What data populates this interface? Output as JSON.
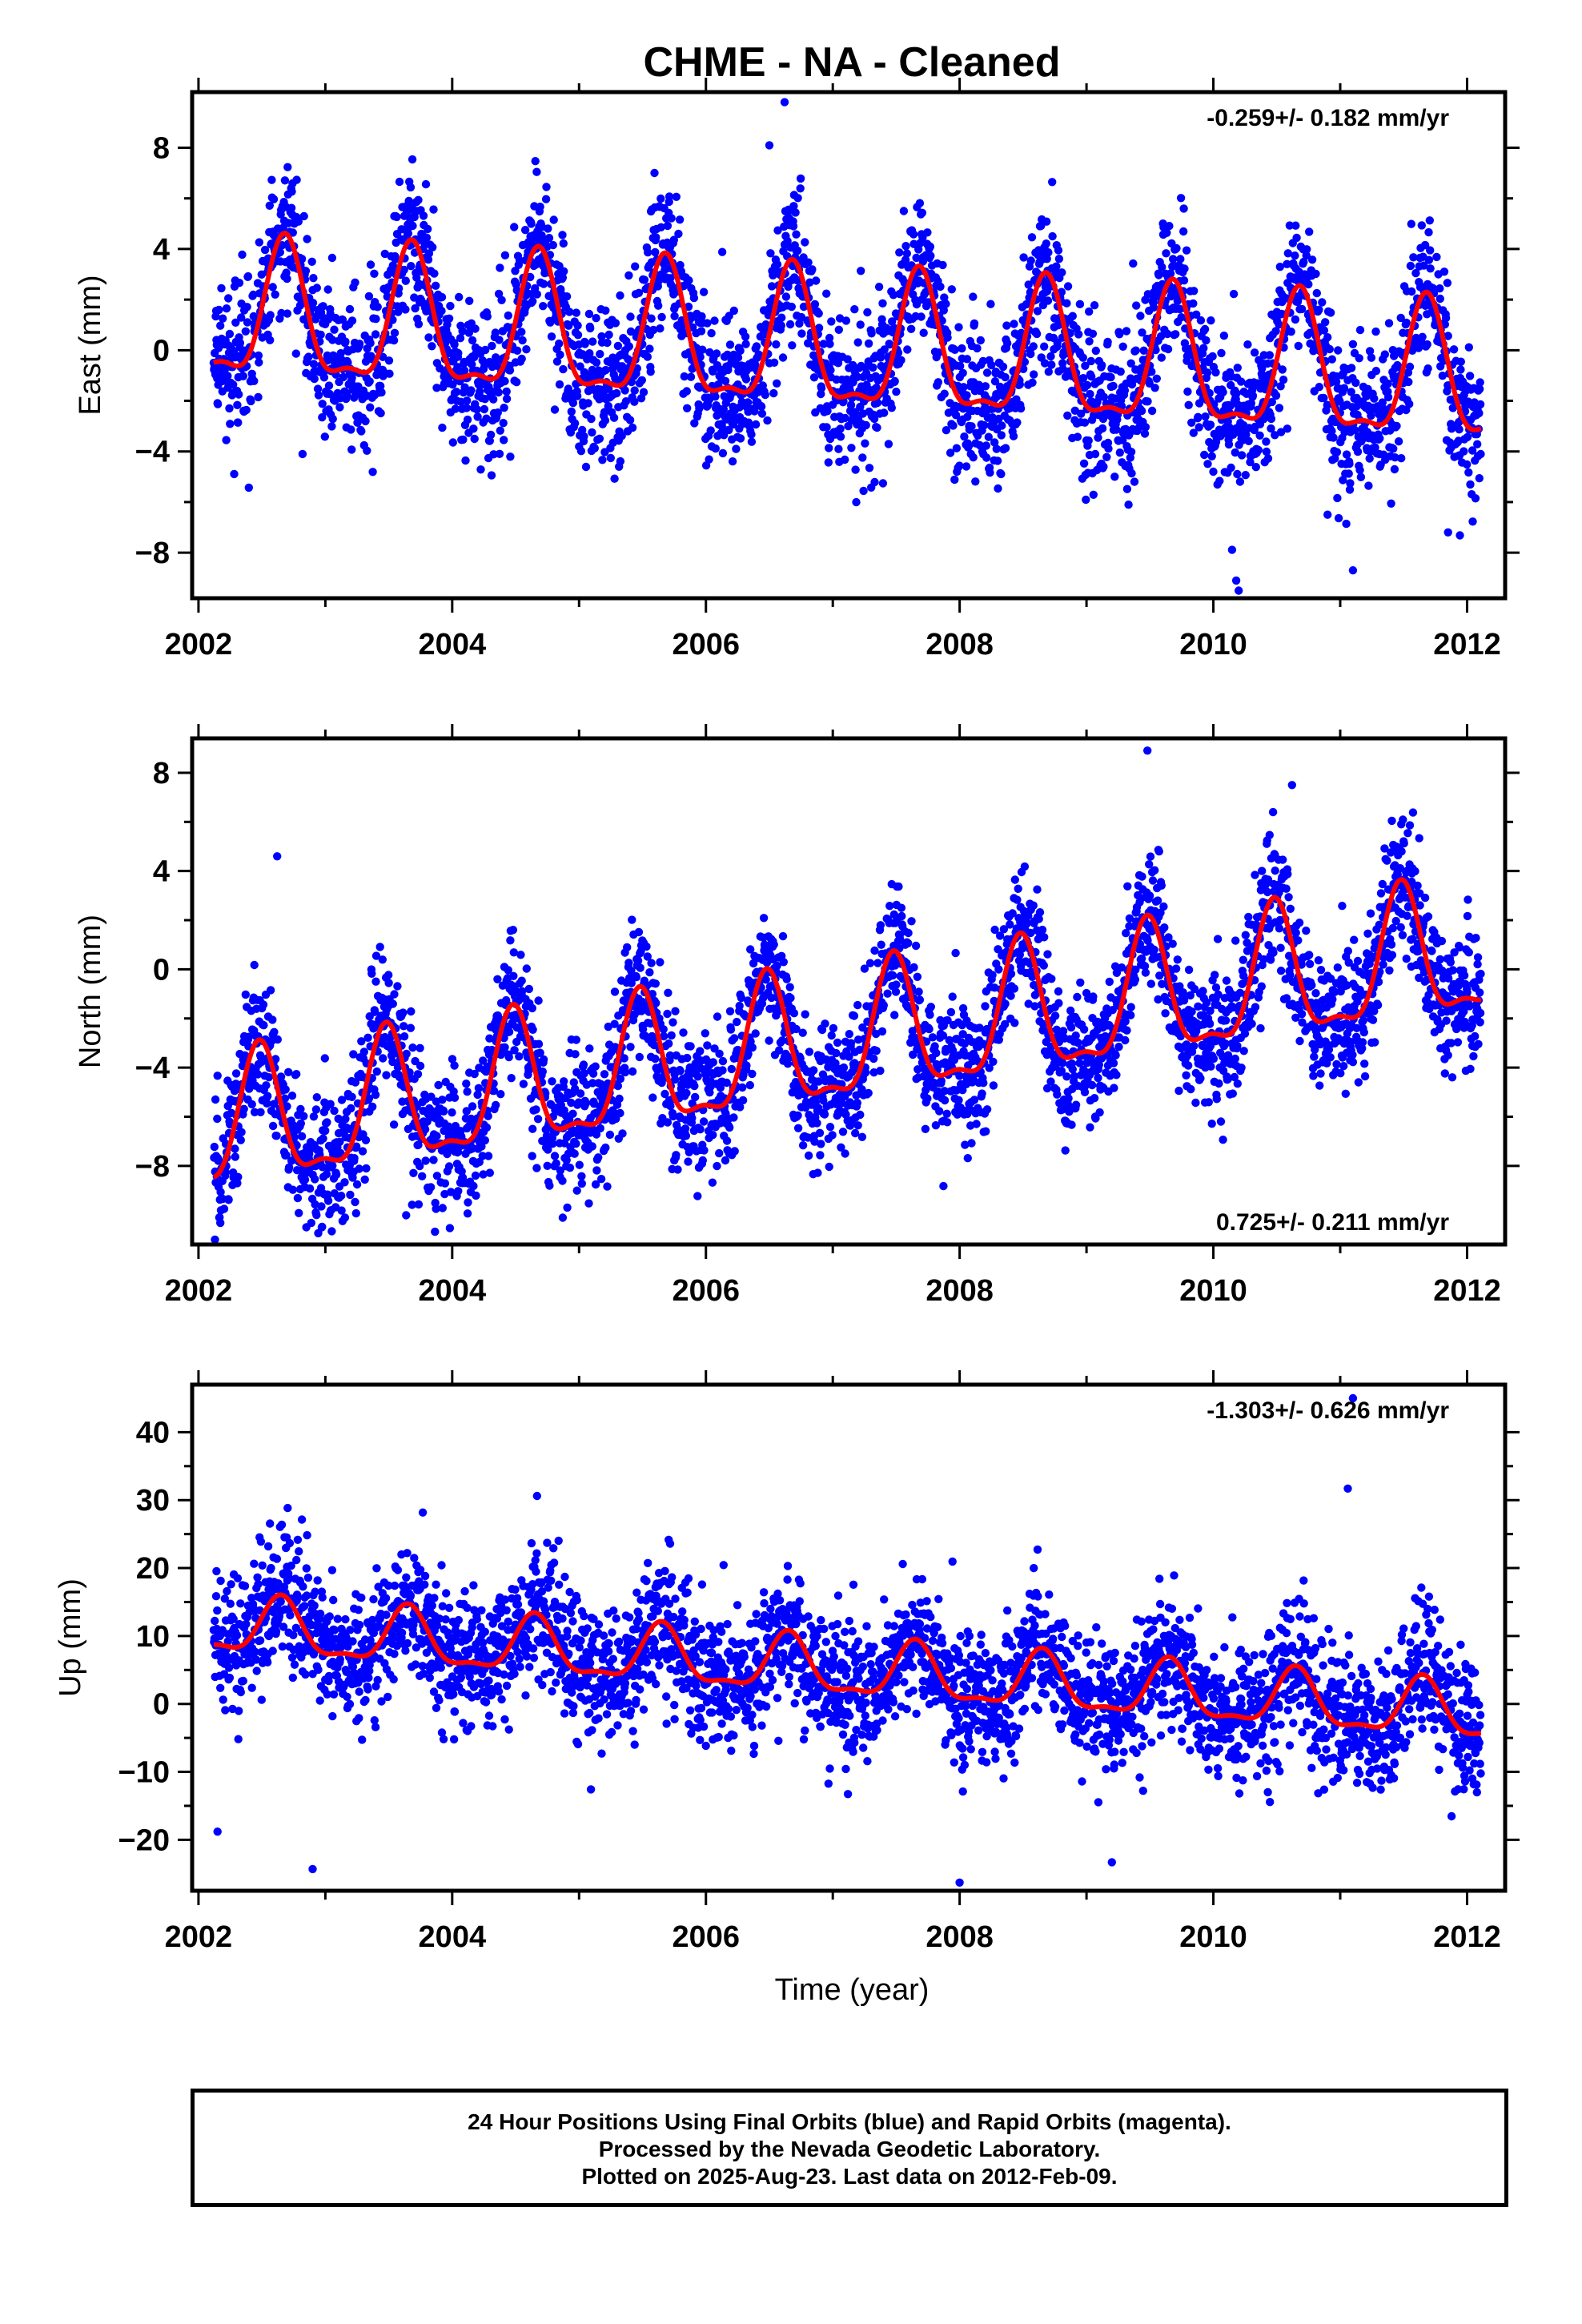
{
  "title": "CHME  - NA - Cleaned",
  "xlabel": "Time (year)",
  "footer": {
    "line1": "24 Hour Positions Using Final Orbits (blue) and Rapid Orbits (magenta).",
    "line2": "Processed by the Nevada Geodetic Laboratory.",
    "line3": "Plotted on 2025-Aug-23. Last data on 2012-Feb-09."
  },
  "colors": {
    "final_orbits": "#0000ff",
    "model_fit": "#ff0000",
    "axes": "#000000"
  },
  "chart_data": [
    {
      "type": "scatter",
      "component": "east",
      "ylabel": "East (mm)",
      "rate_label": "-0.259+/- 0.182 mm/yr",
      "rate_position": "top-right",
      "xlim": [
        2001.95,
        2012.3
      ],
      "ylim": [
        -9.8,
        10.2
      ],
      "xticks": [
        2002,
        2004,
        2006,
        2008,
        2010,
        2012
      ],
      "yticks": [
        8,
        4,
        0,
        -4,
        -8
      ],
      "data_range": [
        2002.12,
        2012.11
      ],
      "model": {
        "trend_mm_per_yr": -0.259,
        "offset_mm": 0.0,
        "annual_amplitude_mm": 2.6,
        "peak_phase_year": 0.68,
        "noise_mm": 1.5
      },
      "outliers": [
        [
          2006.62,
          9.8
        ],
        [
          2006.5,
          8.1
        ],
        [
          2010.18,
          -9.1
        ],
        [
          2010.2,
          -9.5
        ],
        [
          2011.1,
          -8.7
        ],
        [
          2010.9,
          -6.5
        ],
        [
          2002.82,
          -4.1
        ],
        [
          2011.85,
          -7.2
        ]
      ]
    },
    {
      "type": "scatter",
      "component": "north",
      "ylabel": "North (mm)",
      "rate_label": "0.725+/- 0.211 mm/yr",
      "rate_position": "bottom-right",
      "xlim": [
        2001.95,
        2012.3
      ],
      "ylim": [
        -11.2,
        9.4
      ],
      "xticks": [
        2002,
        2004,
        2006,
        2008,
        2010,
        2012
      ],
      "yticks": [
        8,
        4,
        0,
        -4,
        -8
      ],
      "data_range": [
        2002.12,
        2012.11
      ],
      "model": {
        "trend_mm_per_yr": 0.725,
        "offset_mm": -3.1,
        "annual_amplitude_mm": 2.6,
        "peak_phase_year": 0.48,
        "noise_mm": 1.4
      },
      "outliers": [
        [
          2002.62,
          4.6
        ],
        [
          2002.13,
          -11.0
        ],
        [
          2002.85,
          -10.5
        ],
        [
          2002.93,
          -10.0
        ],
        [
          2004.63,
          -7.6
        ],
        [
          2004.75,
          -8.0
        ],
        [
          2007.73,
          -6.5
        ],
        [
          2009.48,
          8.9
        ],
        [
          2010.62,
          7.5
        ]
      ]
    },
    {
      "type": "scatter",
      "component": "up",
      "ylabel": "Up (mm)",
      "rate_label": "-1.303+/- 0.626 mm/yr",
      "rate_position": "top-right",
      "xlim": [
        2001.95,
        2012.3
      ],
      "ylim": [
        -27.5,
        47.0
      ],
      "xticks": [
        2002,
        2004,
        2006,
        2008,
        2010,
        2012
      ],
      "yticks": [
        40,
        30,
        20,
        10,
        0,
        -10,
        -20
      ],
      "data_range": [
        2002.12,
        2012.11
      ],
      "model": {
        "trend_mm_per_yr": -1.303,
        "offset_mm": 5.0,
        "annual_amplitude_mm": 4.0,
        "peak_phase_year": 0.65,
        "noise_mm": 5.0
      },
      "outliers": [
        [
          2011.06,
          31.7
        ],
        [
          2011.1,
          45.0
        ],
        [
          2002.15,
          -18.8
        ],
        [
          2002.9,
          -24.3
        ],
        [
          2008.0,
          -26.3
        ],
        [
          2009.2,
          -23.3
        ],
        [
          2002.55,
          23.2
        ],
        [
          2003.6,
          22.0
        ]
      ]
    }
  ]
}
